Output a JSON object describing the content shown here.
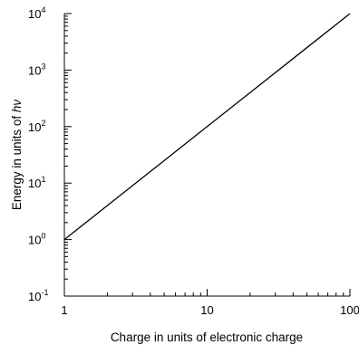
{
  "chart_data": {
    "type": "line",
    "xlabel": "Charge in units of electronic charge",
    "ylabel_prefix": "Energy in units of ",
    "ylabel_symbol": "hν",
    "x_scale": "log",
    "y_scale": "log",
    "xlim": [
      1,
      100
    ],
    "ylim": [
      0.1,
      10000
    ],
    "x_ticks": [
      {
        "value": 1,
        "label": "1"
      },
      {
        "value": 10,
        "label": "10"
      },
      {
        "value": 100,
        "label": "100"
      }
    ],
    "y_ticks": [
      {
        "value": 0.1,
        "base": "10",
        "exp": "-1"
      },
      {
        "value": 1,
        "base": "10",
        "exp": "0"
      },
      {
        "value": 10,
        "base": "10",
        "exp": "1"
      },
      {
        "value": 100,
        "base": "10",
        "exp": "2"
      },
      {
        "value": 1000,
        "base": "10",
        "exp": "3"
      },
      {
        "value": 10000,
        "base": "10",
        "exp": "4"
      }
    ],
    "grid": false,
    "series": [
      {
        "color": "#000000",
        "x": [
          1,
          2,
          5,
          10,
          20,
          50,
          100
        ],
        "y": [
          1,
          4,
          25,
          100,
          400,
          2500,
          10000
        ]
      }
    ]
  }
}
